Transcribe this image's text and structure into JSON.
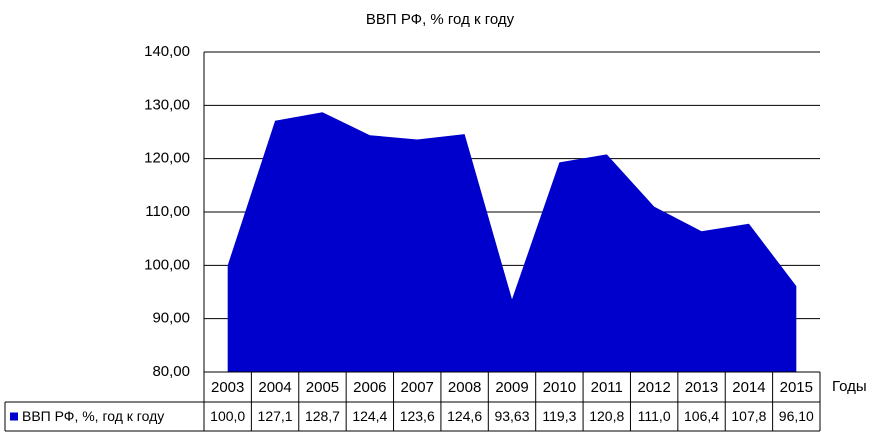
{
  "chart_data": {
    "type": "area",
    "title": "ВВП РФ, % год к году",
    "x_label": "Годы",
    "categories": [
      "2003",
      "2004",
      "2005",
      "2006",
      "2007",
      "2008",
      "2009",
      "2010",
      "2011",
      "2012",
      "2013",
      "2014",
      "2015"
    ],
    "series": [
      {
        "name": "ВВП РФ, %, год к году",
        "color": "#0000cc",
        "values": [
          100.0,
          127.1,
          128.7,
          124.4,
          123.6,
          124.6,
          93.63,
          119.3,
          120.8,
          111.0,
          106.4,
          107.8,
          96.1
        ],
        "value_labels": [
          "100,0",
          "127,1",
          "128,7",
          "124,4",
          "123,6",
          "124,6",
          "93,63",
          "119,3",
          "120,8",
          "111,0",
          "106,4",
          "107,8",
          "96,10"
        ]
      }
    ],
    "ylim": [
      80,
      140
    ],
    "yticks": [
      {
        "value": 80,
        "label": "80,00"
      },
      {
        "value": 90,
        "label": "90,00"
      },
      {
        "value": 100,
        "label": "100,00"
      },
      {
        "value": 110,
        "label": "110,00"
      },
      {
        "value": 120,
        "label": "120,00"
      },
      {
        "value": 130,
        "label": "130,00"
      },
      {
        "value": 140,
        "label": "140,00"
      }
    ],
    "grid": true
  }
}
